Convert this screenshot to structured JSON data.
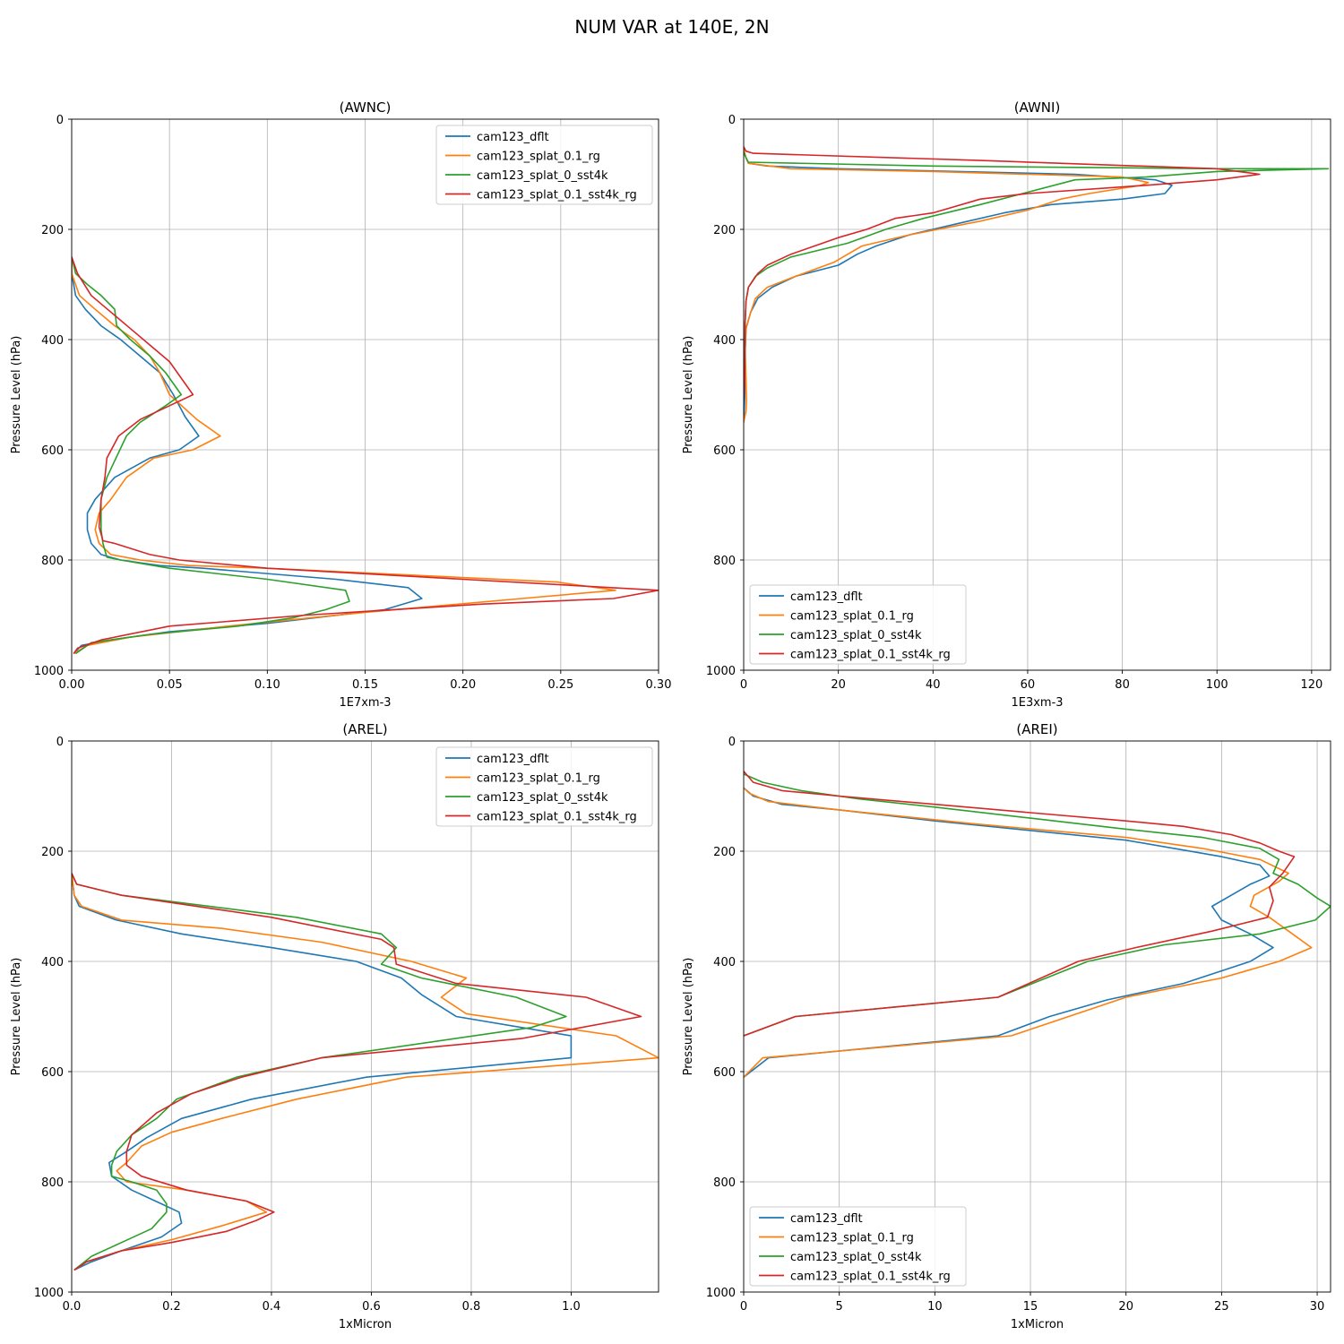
{
  "suptitle": "NUM VAR at 140E, 2N",
  "colors": {
    "cam123_dflt": "#1f77b4",
    "cam123_splat_0.1_rg": "#ff7f0e",
    "cam123_splat_0_sst4k": "#2ca02c",
    "cam123_splat_0.1_sst4k_rg": "#d62728",
    "grid": "#b0b0b0"
  },
  "chart_data": [
    {
      "type": "line",
      "title": "(AWNC)",
      "xlabel": "1E7xm-3",
      "ylabel": "Pressure Level (hPa)",
      "xlim": [
        0,
        0.3
      ],
      "ylim": [
        1000,
        0
      ],
      "xticks": [
        0,
        0.05,
        0.1,
        0.15,
        0.2,
        0.25,
        0.3
      ],
      "xtick_labels": [
        "0.00",
        "0.05",
        "0.10",
        "0.15",
        "0.20",
        "0.25",
        "0.30"
      ],
      "yticks": [
        0,
        200,
        400,
        600,
        800,
        1000
      ],
      "ytick_labels": [
        "0",
        "200",
        "400",
        "600",
        "800",
        "1000"
      ],
      "legend": "upper-right",
      "series": [
        {
          "name": "cam123_dflt",
          "x": [
            0,
            0,
            0.002,
            0.007,
            0.015,
            0.025,
            0.035,
            0.045,
            0.052,
            0.058,
            0.065,
            0.055,
            0.04,
            0.022,
            0.012,
            0.008,
            0.008,
            0.01,
            0.015,
            0.025,
            0.045,
            0.067,
            0.135,
            0.172,
            0.179,
            0.16,
            0.1,
            0.05,
            0.02,
            0.005,
            0.001
          ],
          "y": [
            250,
            280,
            320,
            345,
            375,
            400,
            430,
            460,
            500,
            540,
            575,
            600,
            615,
            650,
            690,
            715,
            745,
            770,
            790,
            800,
            810,
            815,
            835,
            850,
            870,
            890,
            915,
            930,
            945,
            955,
            970
          ]
        },
        {
          "name": "cam123_splat_0.1_rg",
          "x": [
            0,
            0,
            0.004,
            0.012,
            0.022,
            0.032,
            0.04,
            0.045,
            0.05,
            0.064,
            0.076,
            0.062,
            0.042,
            0.028,
            0.02,
            0.014,
            0.012,
            0.014,
            0.02,
            0.035,
            0.06,
            0.1,
            0.16,
            0.248,
            0.278,
            0.23,
            0.15,
            0.08,
            0.03,
            0.008,
            0.001
          ],
          "y": [
            250,
            280,
            320,
            345,
            375,
            400,
            430,
            460,
            500,
            545,
            575,
            600,
            615,
            650,
            690,
            715,
            745,
            770,
            790,
            800,
            810,
            815,
            825,
            840,
            855,
            870,
            895,
            920,
            940,
            955,
            970
          ]
        },
        {
          "name": "cam123_splat_0_sst4k",
          "x": [
            0,
            0.002,
            0.008,
            0.015,
            0.022,
            0.023,
            0.03,
            0.04,
            0.048,
            0.056,
            0.048,
            0.035,
            0.028,
            0.022,
            0.018,
            0.015,
            0.015,
            0.016,
            0.018,
            0.025,
            0.05,
            0.1,
            0.14,
            0.142,
            0.13,
            0.113,
            0.085,
            0.04,
            0.01,
            0.002
          ],
          "y": [
            250,
            280,
            300,
            320,
            345,
            375,
            400,
            430,
            460,
            500,
            520,
            550,
            575,
            620,
            650,
            690,
            745,
            770,
            795,
            800,
            815,
            835,
            855,
            875,
            890,
            905,
            920,
            935,
            950,
            970
          ]
        },
        {
          "name": "cam123_splat_0.1_sst4k_rg",
          "x": [
            0,
            0.003,
            0.01,
            0.02,
            0.03,
            0.04,
            0.05,
            0.062,
            0.05,
            0.035,
            0.024,
            0.018,
            0.017,
            0.015,
            0.014,
            0.016,
            0.022,
            0.04,
            0.055,
            0.1,
            0.2,
            0.3,
            0.277,
            0.21,
            0.12,
            0.05,
            0.015,
            0.003,
            0.001
          ],
          "y": [
            250,
            280,
            320,
            350,
            380,
            410,
            440,
            500,
            520,
            545,
            575,
            615,
            650,
            690,
            740,
            765,
            770,
            790,
            800,
            815,
            835,
            855,
            870,
            880,
            900,
            920,
            945,
            960,
            970
          ]
        }
      ]
    },
    {
      "type": "line",
      "title": "(AWNI)",
      "xlabel": "1E3xm-3",
      "ylabel": "Pressure Level (hPa)",
      "xlim": [
        0,
        124
      ],
      "ylim": [
        1000,
        0
      ],
      "xticks": [
        0,
        20,
        40,
        60,
        80,
        100,
        120
      ],
      "xtick_labels": [
        "0",
        "20",
        "40",
        "60",
        "80",
        "100",
        "120"
      ],
      "yticks": [
        0,
        200,
        400,
        600,
        800,
        1000
      ],
      "ytick_labels": [
        "0",
        "200",
        "400",
        "600",
        "800",
        "1000"
      ],
      "legend": "lower-left",
      "series": [
        {
          "name": "cam123_dflt",
          "x": [
            0,
            0.5,
            1,
            5,
            20,
            70,
            87,
            90.5,
            89,
            80,
            65,
            55,
            45,
            35,
            28,
            24,
            20,
            11,
            6,
            3,
            1.5,
            0.5,
            0.3,
            0.3,
            0.2,
            0
          ],
          "y": [
            55,
            70,
            80,
            85,
            90,
            100,
            110,
            120,
            135,
            145,
            155,
            170,
            190,
            210,
            230,
            245,
            265,
            285,
            305,
            325,
            350,
            380,
            420,
            470,
            510,
            550
          ]
        },
        {
          "name": "cam123_splat_0.1_rg",
          "x": [
            0,
            0.5,
            1,
            10,
            40,
            80,
            85.5,
            84,
            73,
            67,
            60,
            50,
            35,
            25,
            22,
            19,
            11,
            5,
            2.5,
            1.5,
            0.5,
            0.3,
            0.5,
            0.6,
            0.5,
            0
          ],
          "y": [
            55,
            70,
            80,
            90,
            95,
            105,
            115,
            120,
            135,
            145,
            165,
            185,
            210,
            230,
            245,
            260,
            285,
            305,
            325,
            350,
            380,
            420,
            470,
            510,
            530,
            550
          ]
        },
        {
          "name": "cam123_splat_0_sst4k",
          "x": [
            0,
            0.5,
            1,
            40,
            100,
            123.5,
            100,
            85,
            70,
            50,
            38,
            30,
            22,
            10,
            5,
            2.5,
            1,
            0.5,
            0.3,
            0.2,
            0
          ],
          "y": [
            60,
            70,
            78,
            85,
            90,
            90,
            95,
            105,
            110,
            155,
            180,
            200,
            225,
            250,
            270,
            285,
            305,
            330,
            370,
            420,
            470
          ]
        },
        {
          "name": "cam123_splat_0.1_sst4k_rg",
          "x": [
            0,
            0.5,
            2,
            50,
            100,
            109,
            100,
            85,
            60,
            50,
            40,
            32,
            26,
            20,
            15,
            10,
            5,
            3,
            1,
            0.5,
            0.3,
            0.3,
            0.2,
            0
          ],
          "y": [
            50,
            58,
            62,
            75,
            90,
            100,
            110,
            120,
            135,
            145,
            170,
            180,
            200,
            215,
            230,
            245,
            265,
            280,
            305,
            330,
            370,
            420,
            470,
            510
          ]
        }
      ]
    },
    {
      "type": "line",
      "title": "(AREL)",
      "xlabel": "1xMicron",
      "ylabel": "Pressure Level (hPa)",
      "xlim": [
        0,
        1.175
      ],
      "ylim": [
        1000,
        0
      ],
      "xticks": [
        0,
        0.2,
        0.4,
        0.6,
        0.8,
        1.0
      ],
      "xtick_labels": [
        "0.0",
        "0.2",
        "0.4",
        "0.6",
        "0.8",
        "1.0"
      ],
      "yticks": [
        0,
        200,
        400,
        600,
        800,
        1000
      ],
      "ytick_labels": [
        "0",
        "200",
        "400",
        "600",
        "800",
        "1000"
      ],
      "legend": "upper-right",
      "series": [
        {
          "name": "cam123_dflt",
          "x": [
            0,
            0.005,
            0.015,
            0.09,
            0.22,
            0.4,
            0.57,
            0.66,
            0.7,
            0.77,
            1.0,
            1.0,
            0.59,
            0.36,
            0.22,
            0.15,
            0.11,
            0.075,
            0.08,
            0.12,
            0.18,
            0.215,
            0.22,
            0.18,
            0.1,
            0.04,
            0.005
          ],
          "y": [
            240,
            280,
            300,
            325,
            350,
            375,
            400,
            430,
            460,
            500,
            535,
            575,
            610,
            650,
            685,
            720,
            745,
            765,
            790,
            815,
            840,
            855,
            875,
            900,
            925,
            945,
            960
          ]
        },
        {
          "name": "cam123_splat_0.1_rg",
          "x": [
            0,
            0.005,
            0.02,
            0.1,
            0.3,
            0.5,
            0.68,
            0.79,
            0.74,
            0.79,
            1.09,
            1.175,
            0.67,
            0.45,
            0.3,
            0.2,
            0.14,
            0.11,
            0.09,
            0.11,
            0.23,
            0.35,
            0.39,
            0.3,
            0.2,
            0.1,
            0.03,
            0.005
          ],
          "y": [
            240,
            280,
            300,
            325,
            340,
            365,
            400,
            430,
            465,
            495,
            535,
            575,
            610,
            650,
            685,
            710,
            735,
            765,
            780,
            800,
            815,
            835,
            855,
            880,
            905,
            925,
            945,
            960
          ]
        },
        {
          "name": "cam123_splat_0_sst4k",
          "x": [
            0,
            0.01,
            0.1,
            0.45,
            0.62,
            0.65,
            0.62,
            0.7,
            0.89,
            0.99,
            0.92,
            0.5,
            0.33,
            0.21,
            0.17,
            0.12,
            0.09,
            0.08,
            0.08,
            0.12,
            0.17,
            0.19,
            0.19,
            0.16,
            0.1,
            0.04,
            0.005
          ],
          "y": [
            240,
            260,
            280,
            320,
            350,
            375,
            405,
            430,
            465,
            500,
            520,
            575,
            610,
            650,
            685,
            715,
            745,
            770,
            790,
            800,
            815,
            840,
            855,
            885,
            910,
            935,
            960
          ]
        },
        {
          "name": "cam123_splat_0.1_sst4k_rg",
          "x": [
            0,
            0.01,
            0.1,
            0.4,
            0.62,
            0.645,
            0.65,
            0.77,
            1.03,
            1.14,
            0.9,
            0.5,
            0.34,
            0.24,
            0.17,
            0.12,
            0.11,
            0.11,
            0.14,
            0.23,
            0.35,
            0.405,
            0.37,
            0.31,
            0.2,
            0.1,
            0.03,
            0.005
          ],
          "y": [
            240,
            260,
            280,
            320,
            360,
            375,
            405,
            440,
            465,
            500,
            540,
            575,
            610,
            640,
            675,
            715,
            745,
            770,
            790,
            815,
            835,
            855,
            870,
            890,
            910,
            925,
            945,
            960
          ]
        }
      ]
    },
    {
      "type": "line",
      "title": "(AREI)",
      "xlabel": "1xMicron",
      "ylabel": "Pressure Level (hPa)",
      "xlim": [
        0,
        30.7
      ],
      "ylim": [
        1000,
        0
      ],
      "xticks": [
        0,
        5,
        10,
        15,
        20,
        25,
        30
      ],
      "xtick_labels": [
        "0",
        "5",
        "10",
        "15",
        "20",
        "25",
        "30"
      ],
      "yticks": [
        0,
        200,
        400,
        600,
        800,
        1000
      ],
      "ytick_labels": [
        "0",
        "200",
        "400",
        "600",
        "800",
        "1000"
      ],
      "legend": "lower-left",
      "series": [
        {
          "name": "cam123_dflt",
          "x": [
            0,
            0.5,
            2,
            5,
            10,
            20,
            25,
            27,
            27.5,
            26.5,
            25.5,
            24.5,
            25,
            26.5,
            27.7,
            26.5,
            23,
            19,
            16,
            13.3,
            1.3,
            0
          ],
          "y": [
            85,
            100,
            115,
            125,
            145,
            180,
            210,
            225,
            245,
            260,
            280,
            300,
            325,
            350,
            375,
            400,
            440,
            470,
            500,
            535,
            575,
            610
          ]
        },
        {
          "name": "cam123_splat_0.1_rg",
          "x": [
            0,
            0.3,
            1.3,
            5,
            12,
            20,
            24,
            27,
            28.5,
            28,
            26.7,
            26.5,
            27.5,
            28.5,
            29.7,
            28,
            25,
            20,
            14,
            1,
            0
          ],
          "y": [
            85,
            95,
            110,
            125,
            150,
            175,
            195,
            215,
            240,
            255,
            280,
            300,
            320,
            345,
            375,
            400,
            430,
            465,
            535,
            575,
            610
          ]
        },
        {
          "name": "cam123_splat_0_sst4k",
          "x": [
            0,
            1,
            3,
            6,
            10,
            15,
            20,
            24,
            27,
            28,
            27.7,
            29,
            30,
            30.7,
            29.9,
            27,
            22,
            18,
            13.3,
            2.7,
            0
          ],
          "y": [
            60,
            75,
            90,
            105,
            120,
            140,
            160,
            175,
            195,
            215,
            240,
            260,
            285,
            300,
            325,
            350,
            370,
            400,
            465,
            500,
            535
          ]
        },
        {
          "name": "cam123_splat_0.1_sst4k_rg",
          "x": [
            0,
            0.5,
            2,
            5,
            10,
            15,
            20,
            23,
            25.5,
            27,
            28,
            28.8,
            28.2,
            27.5,
            27.7,
            27.4,
            24.5,
            20.5,
            17.5,
            13.3,
            2.7,
            0
          ],
          "y": [
            55,
            75,
            90,
            100,
            115,
            130,
            145,
            155,
            170,
            185,
            200,
            210,
            240,
            265,
            290,
            320,
            345,
            375,
            400,
            465,
            500,
            535
          ]
        }
      ]
    }
  ]
}
